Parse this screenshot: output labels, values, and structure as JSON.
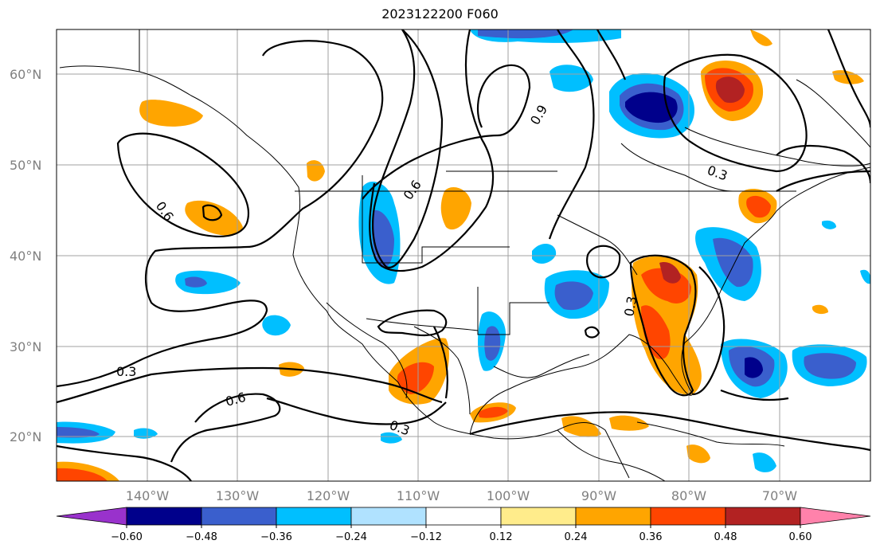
{
  "title": "2023122200 F060",
  "lat_labels": [
    "60°N",
    "50°N",
    "40°N",
    "30°N",
    "20°N"
  ],
  "lon_labels": [
    "140°W",
    "130°W",
    "120°W",
    "110°W",
    "100°W",
    "90°W",
    "80°W",
    "70°W"
  ],
  "contour_labels": [
    "0.6",
    "0.3",
    "0.6",
    "0.3",
    "0.6",
    "0.3",
    "0.9",
    "0.3"
  ],
  "colorbar": {
    "ticks": [
      "−0.60",
      "−0.48",
      "−0.36",
      "−0.24",
      "−0.12",
      "0.12",
      "0.24",
      "0.36",
      "0.48",
      "0.60"
    ],
    "colors": [
      "#9932cc",
      "#00008b",
      "#3a5fcd",
      "#00bfff",
      "#b0e2ff",
      "#ffffff",
      "#ffec8b",
      "#ffa500",
      "#ff4500",
      "#b22222",
      "#ff82ab"
    ]
  }
}
